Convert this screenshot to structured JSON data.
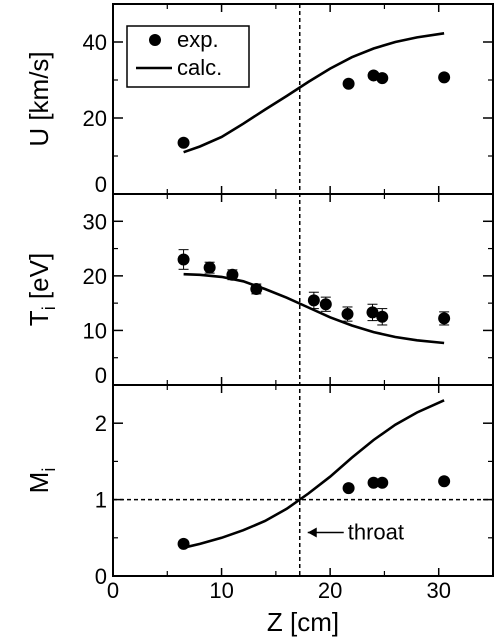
{
  "chart_data": [
    {
      "id": "U",
      "type": "scatter",
      "ylabel": "U [km/s]",
      "ylim": [
        0,
        50
      ],
      "yticks": [
        0,
        20,
        40
      ],
      "xlim": [
        0,
        35
      ],
      "legend": {
        "placement": "top-left",
        "entries": [
          "exp.",
          "calc."
        ]
      },
      "series": [
        {
          "name": "exp.",
          "style": "markers",
          "x": [
            6.5,
            21.7,
            24.0,
            24.8,
            30.5
          ],
          "y": [
            13.5,
            29.0,
            31.2,
            30.5,
            30.7
          ]
        },
        {
          "name": "calc.",
          "style": "line",
          "x": [
            6.5,
            8,
            10,
            12,
            14,
            16,
            18,
            20,
            22,
            24,
            26,
            28,
            30.5
          ],
          "y": [
            11.0,
            12.5,
            15.0,
            18.5,
            22.2,
            25.8,
            29.5,
            33.0,
            36.0,
            38.3,
            40.0,
            41.2,
            42.3
          ]
        }
      ]
    },
    {
      "id": "Ti",
      "type": "scatter",
      "ylabel": "T",
      "ylabel_sub": "i",
      "ylabel_unit": " [eV]",
      "ylim": [
        0,
        35
      ],
      "yticks": [
        0,
        10,
        20,
        30
      ],
      "xlim": [
        0,
        35
      ],
      "series": [
        {
          "name": "",
          "style": "markers",
          "x": [
            6.5,
            8.9,
            11.0,
            13.2,
            18.5,
            19.6,
            21.6,
            23.9,
            24.8,
            30.5
          ],
          "y": [
            23.0,
            21.5,
            20.2,
            17.6,
            15.5,
            14.8,
            13.0,
            13.3,
            12.5,
            12.2
          ],
          "err": [
            1.8,
            1.0,
            0.9,
            0.9,
            1.5,
            1.3,
            1.3,
            1.5,
            1.5,
            1.2
          ]
        },
        {
          "name": "",
          "style": "line",
          "x": [
            6.5,
            8,
            10,
            12,
            14,
            16,
            18,
            20,
            22,
            24,
            26,
            28,
            30.5
          ],
          "y": [
            20.3,
            20.2,
            19.8,
            19.0,
            17.6,
            16.0,
            14.2,
            12.4,
            10.9,
            9.7,
            8.8,
            8.2,
            7.7
          ]
        }
      ]
    },
    {
      "id": "Mi",
      "type": "scatter",
      "ylabel": "M",
      "ylabel_sub": "i",
      "ylabel_unit": "",
      "ylim": [
        0,
        2.5
      ],
      "yticks": [
        0,
        1,
        2
      ],
      "xlim": [
        0,
        35
      ],
      "xticks": [
        0,
        10,
        20,
        30
      ],
      "xlabel": "Z [cm]",
      "series": [
        {
          "name": "",
          "style": "markers",
          "x": [
            6.5,
            21.7,
            24.0,
            24.8,
            30.5
          ],
          "y": [
            0.42,
            1.15,
            1.22,
            1.22,
            1.24
          ]
        },
        {
          "name": "",
          "style": "line",
          "x": [
            6.5,
            8,
            10,
            12,
            14,
            16,
            18,
            20,
            22,
            24,
            26,
            28,
            30.5
          ],
          "y": [
            0.37,
            0.42,
            0.5,
            0.6,
            0.72,
            0.88,
            1.08,
            1.3,
            1.55,
            1.78,
            1.98,
            2.14,
            2.3
          ]
        }
      ],
      "hline": 1,
      "annotation": {
        "text": "throat",
        "x": 17.2,
        "y": 0.57
      }
    }
  ],
  "vline_x": 17.2
}
